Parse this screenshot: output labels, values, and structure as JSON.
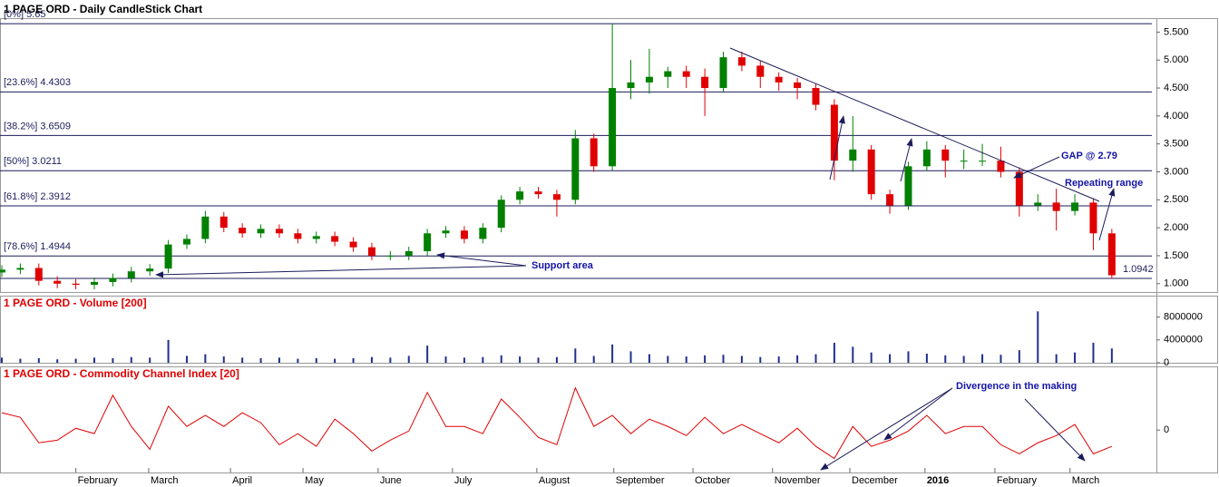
{
  "chart_data": [
    {
      "type": "candlestick",
      "title": "1 PAGE ORD - Daily CandleStick Chart",
      "x": [
        0,
        5,
        10,
        15,
        20,
        25,
        30,
        35,
        40,
        45,
        50,
        55,
        60,
        65,
        70,
        75,
        80,
        85,
        90,
        95,
        100,
        105,
        110,
        115,
        120,
        125,
        130,
        135,
        140,
        145,
        150,
        155,
        160,
        165,
        170,
        175,
        180,
        185,
        190,
        195,
        200,
        205,
        210,
        215,
        220,
        225,
        230,
        235,
        240,
        245,
        250,
        255,
        260,
        265,
        270,
        275,
        280,
        285,
        290,
        295,
        300
      ],
      "open": [
        1.2,
        1.25,
        1.28,
        1.05,
        1.0,
        0.98,
        1.03,
        1.1,
        1.22,
        1.27,
        1.7,
        1.8,
        2.2,
        2.0,
        1.9,
        1.98,
        1.9,
        1.8,
        1.85,
        1.75,
        1.65,
        1.5,
        1.5,
        1.58,
        1.9,
        1.95,
        1.8,
        2.0,
        2.5,
        2.65,
        2.6,
        2.5,
        3.6,
        3.1,
        4.5,
        4.6,
        4.7,
        4.8,
        4.7,
        4.5,
        5.05,
        4.9,
        4.7,
        4.6,
        4.5,
        4.2,
        3.2,
        3.4,
        2.6,
        2.4,
        3.1,
        3.4,
        3.2,
        3.2,
        3.2,
        3.0,
        2.4,
        2.45,
        2.3,
        2.45,
        1.9
      ],
      "high": [
        1.33,
        1.36,
        1.36,
        1.13,
        1.08,
        1.11,
        1.18,
        1.3,
        1.35,
        1.78,
        1.88,
        2.3,
        2.28,
        2.08,
        2.06,
        2.06,
        1.98,
        1.93,
        1.93,
        1.83,
        1.73,
        1.58,
        1.66,
        1.98,
        2.03,
        2.03,
        2.08,
        2.58,
        2.73,
        2.73,
        2.68,
        3.75,
        3.68,
        5.65,
        5.0,
        5.2,
        4.88,
        4.9,
        4.85,
        5.15,
        5.15,
        4.98,
        4.78,
        4.68,
        4.58,
        4.3,
        4.0,
        3.48,
        2.68,
        3.18,
        3.55,
        3.48,
        3.4,
        3.5,
        3.45,
        3.08,
        2.6,
        2.7,
        2.6,
        2.53,
        1.98
      ],
      "low": [
        1.12,
        1.17,
        0.97,
        0.92,
        0.9,
        0.9,
        0.95,
        1.02,
        1.14,
        1.19,
        1.62,
        1.72,
        1.92,
        1.82,
        1.82,
        1.82,
        1.72,
        1.72,
        1.67,
        1.57,
        1.42,
        1.42,
        1.42,
        1.5,
        1.82,
        1.72,
        1.72,
        1.92,
        2.42,
        2.52,
        2.2,
        2.42,
        3.0,
        3.02,
        4.3,
        4.4,
        4.5,
        4.5,
        4.0,
        4.42,
        4.8,
        4.5,
        4.45,
        4.3,
        4.1,
        2.85,
        3.0,
        2.5,
        2.25,
        2.32,
        3.02,
        2.9,
        3.05,
        3.1,
        2.9,
        2.2,
        2.3,
        1.95,
        2.22,
        1.6,
        1.09
      ],
      "close": [
        1.25,
        1.28,
        1.05,
        1.0,
        0.98,
        1.03,
        1.1,
        1.22,
        1.27,
        1.7,
        1.8,
        2.2,
        2.0,
        1.9,
        1.98,
        1.9,
        1.8,
        1.85,
        1.75,
        1.65,
        1.5,
        1.5,
        1.58,
        1.9,
        1.95,
        1.8,
        2.0,
        2.5,
        2.65,
        2.6,
        2.5,
        3.6,
        3.1,
        4.5,
        4.6,
        4.7,
        4.8,
        4.7,
        4.5,
        5.05,
        4.9,
        4.7,
        4.6,
        4.5,
        4.2,
        3.2,
        3.4,
        2.6,
        2.4,
        3.1,
        3.4,
        3.2,
        3.2,
        3.2,
        3.0,
        2.4,
        2.45,
        2.3,
        2.45,
        1.9,
        1.15
      ],
      "up_color": "#008000",
      "down_color": "#e00000",
      "xlim": [
        0,
        302
      ],
      "xticks": [
        {
          "value": 20,
          "label": "February"
        },
        {
          "value": 39.7,
          "label": "March"
        },
        {
          "value": 61.8,
          "label": "April"
        },
        {
          "value": 81.4,
          "label": "May"
        },
        {
          "value": 101.7,
          "label": "June"
        },
        {
          "value": 121.8,
          "label": "July"
        },
        {
          "value": 144.6,
          "label": "August"
        },
        {
          "value": 165.4,
          "label": "September"
        },
        {
          "value": 186.8,
          "label": "October"
        },
        {
          "value": 208.3,
          "label": "November"
        },
        {
          "value": 229.2,
          "label": "December"
        },
        {
          "value": 249.5,
          "label": "2016"
        },
        {
          "value": 268.4,
          "label": "February"
        },
        {
          "value": 288.7,
          "label": "March"
        }
      ],
      "ylim": [
        0.85,
        5.75
      ],
      "yticks": [
        {
          "value": 1,
          "label": "1.000"
        },
        {
          "value": 1.5,
          "label": "1.500"
        },
        {
          "value": 2,
          "label": "2.000"
        },
        {
          "value": 2.5,
          "label": "2.500"
        },
        {
          "value": 3,
          "label": "3.000"
        },
        {
          "value": 3.5,
          "label": "3.500"
        },
        {
          "value": 4,
          "label": "4.000"
        },
        {
          "value": 4.5,
          "label": "4.500"
        },
        {
          "value": 5,
          "label": "5.000"
        },
        {
          "value": 5.5,
          "label": "5.500"
        }
      ],
      "fib_levels": [
        {
          "value": 5.65,
          "label": "[0%] 5.65"
        },
        {
          "value": 4.4303,
          "label": "[23.6%] 4.4303"
        },
        {
          "value": 3.6509,
          "label": "[38.2%] 3.6509"
        },
        {
          "value": 3.0211,
          "label": "[50%] 3.0211"
        },
        {
          "value": 2.3912,
          "label": "[61.8%] 2.3912"
        },
        {
          "value": 1.4944,
          "label": "[78.6%] 1.4944"
        },
        {
          "value": 1.0942,
          "label": "1.0942"
        }
      ],
      "fib_color": "#1c1c5c",
      "annotations": [
        "Support area",
        "GAP @ 2.79",
        "Repeating range"
      ]
    },
    {
      "type": "bar",
      "title": "1 PAGE ORD - Volume [200]",
      "color": "#1f2f8f",
      "values": [
        900000,
        700000,
        800000,
        600000,
        700000,
        900000,
        800000,
        1000000,
        900000,
        4000000,
        1200000,
        1500000,
        1100000,
        900000,
        800000,
        900000,
        700000,
        800000,
        700000,
        800000,
        1000000,
        900000,
        1200000,
        3000000,
        1100000,
        900000,
        1000000,
        1300000,
        1100000,
        900000,
        1000000,
        2500000,
        1200000,
        3200000,
        2000000,
        1500000,
        1200000,
        1100000,
        1300000,
        1400000,
        1200000,
        1000000,
        1100000,
        1300000,
        1500000,
        3500000,
        2800000,
        1800000,
        1500000,
        2000000,
        1600000,
        1300000,
        1200000,
        1500000,
        1400000,
        2200000,
        9000000,
        1500000,
        1800000,
        3500000,
        2500000
      ],
      "ylim": [
        0,
        11750000
      ],
      "yticks": [
        0,
        4000000,
        8000000
      ]
    },
    {
      "type": "line",
      "title": "1 PAGE ORD - Commodity Channel Index [20]",
      "color": "#e00000",
      "values": [
        106,
        78,
        -78,
        -62,
        11,
        -22,
        213,
        22,
        -118,
        146,
        22,
        90,
        22,
        106,
        45,
        -90,
        -22,
        -100,
        67,
        -22,
        -129,
        -62,
        -6,
        230,
        22,
        22,
        -22,
        190,
        78,
        -45,
        -90,
        258,
        22,
        90,
        -22,
        67,
        22,
        -34,
        78,
        -22,
        34,
        -22,
        -78,
        11,
        -100,
        -174,
        22,
        -100,
        -62,
        -6,
        90,
        -22,
        22,
        22,
        -90,
        -146,
        -78,
        -34,
        34,
        -146,
        -100
      ],
      "ylim": [
        -260,
        390
      ],
      "yticks": [
        0
      ],
      "annotations": [
        "Divergence  in the making"
      ]
    }
  ]
}
